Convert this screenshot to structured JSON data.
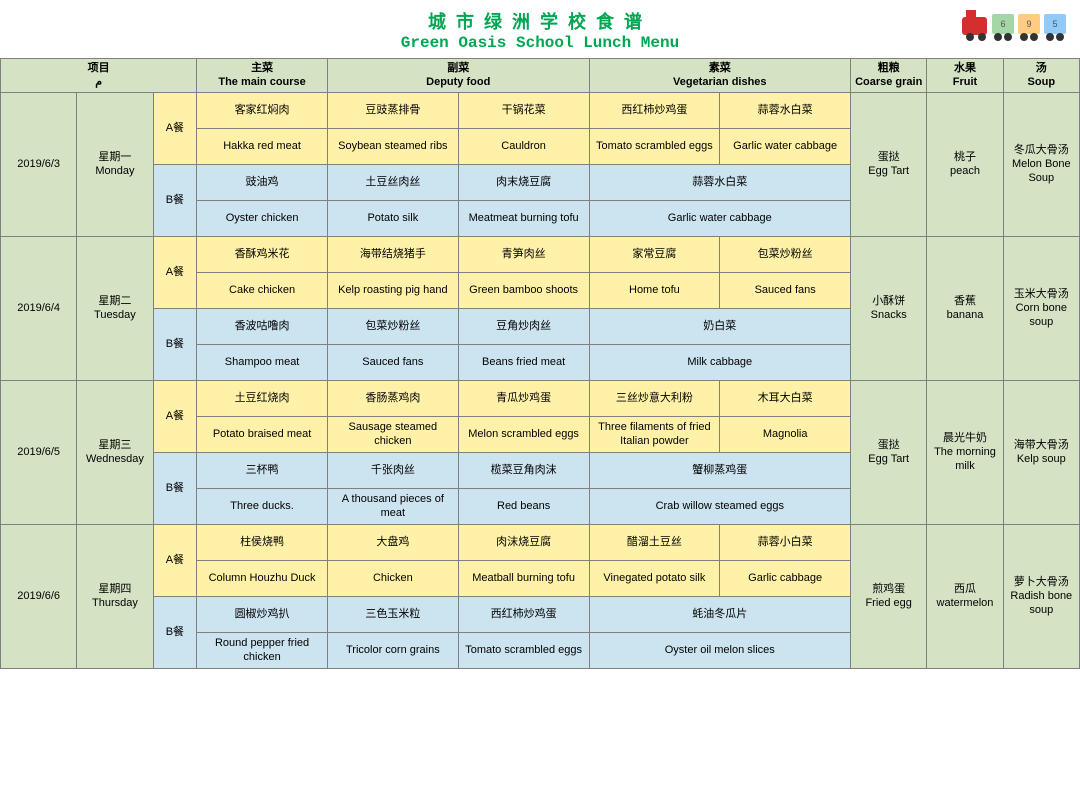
{
  "title": {
    "cn": "城市绿洲学校食谱",
    "en": "Green Oasis School Lunch Menu"
  },
  "headers": {
    "item_cn": "项目",
    "item_glyph": "م",
    "main_cn": "主菜",
    "main_en": "The main course",
    "deputy_cn": "副菜",
    "deputy_en": "Deputy food",
    "veg_cn": "素菜",
    "veg_en": "Vegetarian dishes",
    "coarse_cn": "粗粮",
    "coarse_en": "Coarse grain",
    "fruit_cn": "水果",
    "fruit_en": "Fruit",
    "soup_cn": "汤",
    "soup_en": "Soup"
  },
  "meal_labels": {
    "a": "A餐",
    "b": "B餐"
  },
  "days": [
    {
      "date": "2019/6/3",
      "dow_cn": "星期一",
      "dow_en": "Monday",
      "a_cn": [
        "客家红焖肉",
        "豆豉蒸排骨",
        "干锅花菜",
        "西红柿炒鸡蛋",
        "蒜蓉水白菜"
      ],
      "a_en": [
        "Hakka red meat",
        "Soybean steamed ribs",
        "Cauldron",
        "Tomato scrambled eggs",
        "Garlic water cabbage"
      ],
      "b_cn": [
        "豉油鸡",
        "土豆丝肉丝",
        "肉末烧豆腐",
        "蒜蓉水白菜"
      ],
      "b_en": [
        "Oyster chicken",
        "Potato silk",
        "Meatmeat burning tofu",
        "Garlic water cabbage"
      ],
      "coarse_cn": "蛋挞",
      "coarse_en": "Egg Tart",
      "fruit_cn": "桃子",
      "fruit_en": "peach",
      "soup_cn": "冬瓜大骨汤",
      "soup_en": "Melon Bone Soup"
    },
    {
      "date": "2019/6/4",
      "dow_cn": "星期二",
      "dow_en": "Tuesday",
      "a_cn": [
        "香酥鸡米花",
        "海带结烧猪手",
        "青笋肉丝",
        "家常豆腐",
        "包菜炒粉丝"
      ],
      "a_en": [
        "Cake chicken",
        "Kelp roasting pig hand",
        "Green bamboo shoots",
        "Home tofu",
        "Sauced fans"
      ],
      "b_cn": [
        "香波咕噜肉",
        "包菜炒粉丝",
        "豆角炒肉丝",
        "奶白菜"
      ],
      "b_en": [
        "Shampoo meat",
        "Sauced fans",
        "Beans fried meat",
        "Milk cabbage"
      ],
      "coarse_cn": "小酥饼",
      "coarse_en": "Snacks",
      "fruit_cn": "香蕉",
      "fruit_en": "banana",
      "soup_cn": "玉米大骨汤",
      "soup_en": "Corn bone soup"
    },
    {
      "date": "2019/6/5",
      "dow_cn": "星期三",
      "dow_en": "Wednesday",
      "a_cn": [
        "土豆红烧肉",
        "香肠蒸鸡肉",
        "青瓜炒鸡蛋",
        "三丝炒意大利粉",
        "木耳大白菜"
      ],
      "a_en": [
        "Potato braised meat",
        "Sausage steamed chicken",
        "Melon scrambled eggs",
        "Three filaments of fried Italian powder",
        "Magnolia"
      ],
      "b_cn": [
        "三杯鸭",
        "千张肉丝",
        "榄菜豆角肉沫",
        "蟹柳蒸鸡蛋"
      ],
      "b_en": [
        "Three ducks.",
        "A thousand pieces of meat",
        "Red beans",
        "Crab willow steamed eggs"
      ],
      "coarse_cn": "蛋挞",
      "coarse_en": "Egg Tart",
      "fruit_cn": "晨光牛奶",
      "fruit_en": "The morning milk",
      "soup_cn": "海带大骨汤",
      "soup_en": "Kelp soup"
    },
    {
      "date": "2019/6/6",
      "dow_cn": "星期四",
      "dow_en": "Thursday",
      "a_cn": [
        "柱侯烧鸭",
        "大盘鸡",
        "肉沫烧豆腐",
        "醋溜土豆丝",
        "蒜蓉小白菜"
      ],
      "a_en": [
        "Column Houzhu Duck",
        "Chicken",
        "Meatball burning tofu",
        "Vinegated potato silk",
        "Garlic cabbage"
      ],
      "b_cn": [
        "圆椒炒鸡扒",
        "三色玉米粒",
        "西红柿炒鸡蛋",
        "蚝油冬瓜片"
      ],
      "b_en": [
        "Round pepper fried chicken",
        "Tricolor corn grains",
        "Tomato scrambled eggs",
        "Oyster oil melon slices"
      ],
      "coarse_cn": "煎鸡蛋",
      "coarse_en": "Fried egg",
      "fruit_cn": "西瓜",
      "fruit_en": "watermelon",
      "soup_cn": "萝卜大骨汤",
      "soup_en": "Radish bone soup"
    }
  ],
  "style": {
    "accent_green": "#00a651",
    "header_bg": "#d5e3c5",
    "meal_a_bg": "#fff2a8",
    "meal_b_bg": "#cce4f0",
    "border": "#808080",
    "font_small": 11,
    "title_cn_size": 18,
    "title_en_size": 16
  }
}
